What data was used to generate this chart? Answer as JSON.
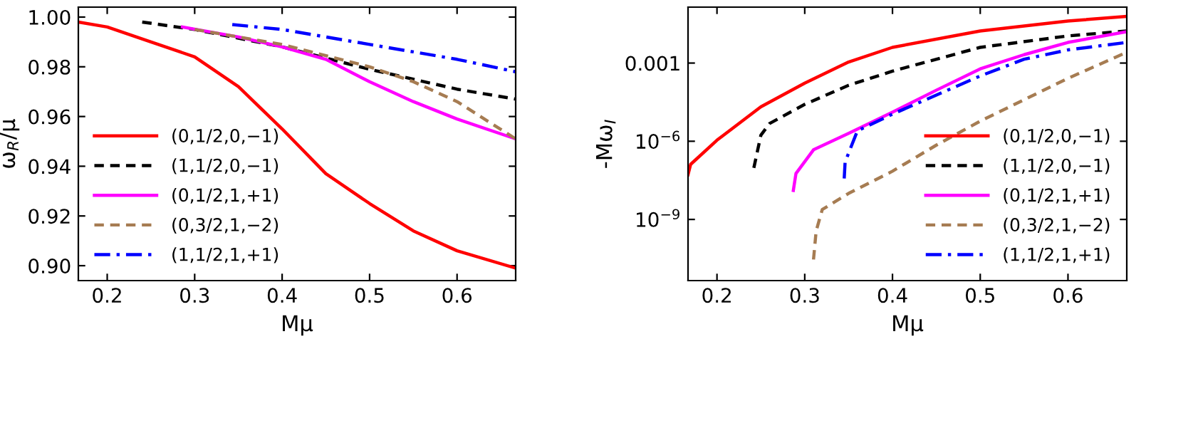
{
  "chart_data": [
    {
      "type": "line",
      "xlabel": "Mμ",
      "ylabel": "ω$_{R}$/μ",
      "xlim": [
        0.167,
        0.667
      ],
      "ylim": [
        0.894,
        1.004
      ],
      "xticks": [
        0.2,
        0.3,
        0.4,
        0.5,
        0.6
      ],
      "yticks": [
        {
          "value": 0.9,
          "label": "0.90"
        },
        {
          "value": 0.92,
          "label": "0.92"
        },
        {
          "value": 0.94,
          "label": "0.94"
        },
        {
          "value": 0.96,
          "label": "0.96"
        },
        {
          "value": 0.98,
          "label": "0.98"
        },
        {
          "value": 1.0,
          "label": "1.00"
        }
      ],
      "legend": "lower left",
      "grid": false,
      "series": [
        {
          "name": "(0,1/2,0,−1)",
          "color": "#ff0000",
          "line_style": "solid",
          "x": [
            0.167,
            0.2,
            0.25,
            0.3,
            0.35,
            0.4,
            0.45,
            0.5,
            0.55,
            0.6,
            0.667
          ],
          "values": [
            0.998,
            0.996,
            0.99,
            0.984,
            0.972,
            0.955,
            0.937,
            0.925,
            0.914,
            0.906,
            0.899
          ]
        },
        {
          "name": "(1,1/2,0,−1)",
          "color": "#000000",
          "line_style": "dashed",
          "x": [
            0.24,
            0.3,
            0.4,
            0.5,
            0.55,
            0.6,
            0.667
          ],
          "values": [
            0.998,
            0.995,
            0.988,
            0.979,
            0.975,
            0.971,
            0.967
          ]
        },
        {
          "name": "(0,1/2,1,+1)",
          "color": "#ff00ff",
          "line_style": "solid",
          "x": [
            0.286,
            0.35,
            0.4,
            0.45,
            0.5,
            0.55,
            0.6,
            0.667
          ],
          "values": [
            0.996,
            0.992,
            0.988,
            0.983,
            0.974,
            0.966,
            0.959,
            0.951
          ]
        },
        {
          "name": "(0,3/2,1,−2)",
          "color": "#a67c52",
          "line_style": "dashed",
          "x": [
            0.3,
            0.4,
            0.5,
            0.55,
            0.6,
            0.667
          ],
          "values": [
            0.995,
            0.989,
            0.98,
            0.974,
            0.966,
            0.951
          ]
        },
        {
          "name": "(1,1/2,1,+1)",
          "color": "#0000ff",
          "line_style": "dashdot",
          "x": [
            0.343,
            0.4,
            0.5,
            0.6,
            0.667
          ],
          "values": [
            0.997,
            0.995,
            0.989,
            0.983,
            0.978
          ]
        }
      ]
    },
    {
      "type": "line",
      "xlabel": "Mμ",
      "ylabel": "-Mω$_{I}$",
      "log": "y",
      "xlim": [
        0.167,
        0.667
      ],
      "ylim": [
        4.5e-12,
        0.14
      ],
      "xticks": [
        0.2,
        0.3,
        0.4,
        0.5,
        0.6
      ],
      "yticks": [
        {
          "value": 1e-09,
          "label": "10$^{−9}$"
        },
        {
          "value": 1e-06,
          "label": "10$^{−6}$"
        },
        0.001
      ],
      "legend": "lower right",
      "grid": false,
      "series": [
        {
          "name": "(0,1/2,0,−1)",
          "color": "#ff0000",
          "line_style": "solid",
          "x": [
            0.167,
            0.17,
            0.2,
            0.25,
            0.3,
            0.35,
            0.4,
            0.5,
            0.6,
            0.667
          ],
          "values": [
            5.2e-08,
            1.3e-07,
            1.1e-06,
            2.1e-05,
            0.00017,
            0.0011,
            0.004,
            0.017,
            0.041,
            0.062
          ]
        },
        {
          "name": "(1,1/2,0,−1)",
          "color": "#000000",
          "line_style": "dashed",
          "x": [
            0.242,
            0.25,
            0.26,
            0.3,
            0.35,
            0.4,
            0.5,
            0.6,
            0.667
          ],
          "values": [
            9.5e-08,
            1.7e-06,
            4.8e-06,
            2.6e-05,
            0.00014,
            0.00049,
            0.004,
            0.011,
            0.017
          ]
        },
        {
          "name": "(0,1/2,1,+1)",
          "color": "#ff00ff",
          "line_style": "solid",
          "x": [
            0.287,
            0.29,
            0.31,
            0.35,
            0.4,
            0.45,
            0.5,
            0.55,
            0.6,
            0.667
          ],
          "values": [
            1.3e-08,
            5.8e-08,
            4.7e-07,
            2e-06,
            1.3e-05,
            9.1e-05,
            0.0006,
            0.0021,
            0.0062,
            0.016
          ]
        },
        {
          "name": "(0,3/2,1,−2)",
          "color": "#a67c52",
          "line_style": "dashed",
          "x": [
            0.31,
            0.313,
            0.32,
            0.35,
            0.4,
            0.45,
            0.5,
            0.55,
            0.6,
            0.667
          ],
          "values": [
            2.9e-11,
            3.6e-10,
            2.4e-09,
            1e-08,
            7.1e-08,
            7.1e-07,
            5.9e-06,
            3.9e-05,
            0.00026,
            0.0026
          ]
        },
        {
          "name": "(1,1/2,1,+1)",
          "color": "#0000ff",
          "line_style": "dashdot",
          "x": [
            0.345,
            0.346,
            0.36,
            0.4,
            0.45,
            0.5,
            0.55,
            0.6,
            0.667
          ],
          "values": [
            3.7e-08,
            1.6e-07,
            2.5e-06,
            1.1e-05,
            5.9e-05,
            0.00032,
            0.0014,
            0.0032,
            0.0062
          ]
        }
      ]
    }
  ]
}
